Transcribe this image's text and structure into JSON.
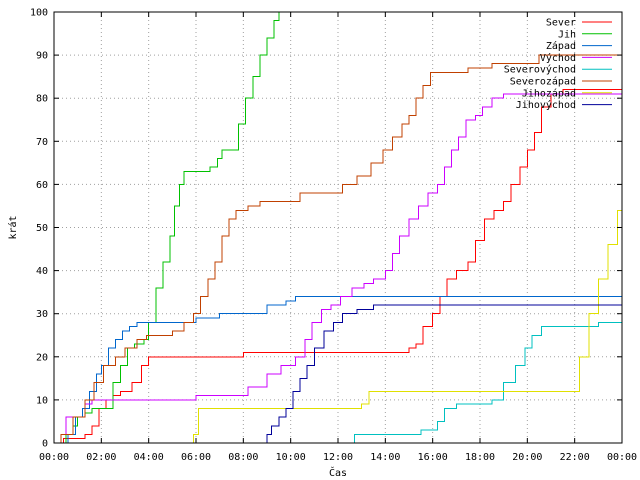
{
  "chart_data": {
    "type": "line",
    "step": true,
    "xlabel": "Čas",
    "ylabel": "krát",
    "xlim": [
      0,
      24
    ],
    "ylim": [
      0,
      100
    ],
    "x_ticks": [
      {
        "value": 0,
        "label": "00:00"
      },
      {
        "value": 2,
        "label": "02:00"
      },
      {
        "value": 4,
        "label": "04:00"
      },
      {
        "value": 6,
        "label": "06:00"
      },
      {
        "value": 8,
        "label": "08:00"
      },
      {
        "value": 10,
        "label": "10:00"
      },
      {
        "value": 12,
        "label": "12:00"
      },
      {
        "value": 14,
        "label": "14:00"
      },
      {
        "value": 16,
        "label": "16:00"
      },
      {
        "value": 18,
        "label": "18:00"
      },
      {
        "value": 20,
        "label": "20:00"
      },
      {
        "value": 22,
        "label": "22:00"
      },
      {
        "value": 24,
        "label": "00:00"
      }
    ],
    "y_ticks": [
      {
        "value": 0,
        "label": "0"
      },
      {
        "value": 10,
        "label": "10"
      },
      {
        "value": 20,
        "label": "20"
      },
      {
        "value": 30,
        "label": "30"
      },
      {
        "value": 40,
        "label": "40"
      },
      {
        "value": 50,
        "label": "50"
      },
      {
        "value": 60,
        "label": "60"
      },
      {
        "value": 70,
        "label": "70"
      },
      {
        "value": 80,
        "label": "80"
      },
      {
        "value": 90,
        "label": "90"
      },
      {
        "value": 100,
        "label": "100"
      }
    ],
    "grid": true,
    "legend_position": "top-right",
    "series": [
      {
        "name": "Sever",
        "color": "#ff0000",
        "points": [
          [
            0,
            0
          ],
          [
            0.4,
            1
          ],
          [
            1.3,
            2
          ],
          [
            1.6,
            4
          ],
          [
            1.9,
            8
          ],
          [
            2.2,
            10
          ],
          [
            2.5,
            11
          ],
          [
            2.8,
            12
          ],
          [
            3.3,
            14
          ],
          [
            3.7,
            18
          ],
          [
            4.0,
            20
          ],
          [
            5.0,
            20
          ],
          [
            7.0,
            20
          ],
          [
            8.0,
            21
          ],
          [
            9.0,
            21
          ],
          [
            11.0,
            21
          ],
          [
            13.0,
            21
          ],
          [
            14.5,
            21
          ],
          [
            15.0,
            22
          ],
          [
            15.3,
            23
          ],
          [
            15.6,
            27
          ],
          [
            16.0,
            30
          ],
          [
            16.3,
            34
          ],
          [
            16.6,
            38
          ],
          [
            17.0,
            40
          ],
          [
            17.5,
            42
          ],
          [
            17.8,
            47
          ],
          [
            18.2,
            52
          ],
          [
            18.6,
            54
          ],
          [
            19.0,
            56
          ],
          [
            19.3,
            60
          ],
          [
            19.7,
            64
          ],
          [
            20.0,
            68
          ],
          [
            20.3,
            72
          ],
          [
            20.6,
            78
          ],
          [
            21.0,
            81
          ],
          [
            21.5,
            82
          ],
          [
            22.5,
            82
          ],
          [
            24.0,
            82
          ]
        ]
      },
      {
        "name": "Jih",
        "color": "#00c000",
        "points": [
          [
            0,
            0
          ],
          [
            0.5,
            2
          ],
          [
            0.8,
            4
          ],
          [
            1.0,
            6
          ],
          [
            1.3,
            7
          ],
          [
            1.6,
            8
          ],
          [
            2.0,
            8
          ],
          [
            2.5,
            14
          ],
          [
            2.8,
            18
          ],
          [
            3.1,
            22
          ],
          [
            3.4,
            23
          ],
          [
            3.8,
            24
          ],
          [
            4.0,
            28
          ],
          [
            4.3,
            36
          ],
          [
            4.6,
            42
          ],
          [
            4.9,
            48
          ],
          [
            5.1,
            55
          ],
          [
            5.3,
            60
          ],
          [
            5.5,
            63
          ],
          [
            6.0,
            63
          ],
          [
            6.3,
            63
          ],
          [
            6.6,
            64
          ],
          [
            6.9,
            66
          ],
          [
            7.1,
            68
          ],
          [
            7.6,
            68
          ],
          [
            7.8,
            74
          ],
          [
            8.1,
            80
          ],
          [
            8.4,
            85
          ],
          [
            8.7,
            90
          ],
          [
            9.0,
            94
          ],
          [
            9.3,
            98
          ],
          [
            9.5,
            100
          ]
        ]
      },
      {
        "name": "Západ",
        "color": "#0066cc",
        "points": [
          [
            0,
            0
          ],
          [
            0.6,
            2
          ],
          [
            0.9,
            6
          ],
          [
            1.2,
            8
          ],
          [
            1.5,
            12
          ],
          [
            1.8,
            16
          ],
          [
            2.0,
            18
          ],
          [
            2.3,
            22
          ],
          [
            2.6,
            24
          ],
          [
            2.9,
            26
          ],
          [
            3.2,
            27
          ],
          [
            3.5,
            28
          ],
          [
            4.0,
            28
          ],
          [
            5.0,
            28
          ],
          [
            6.0,
            29
          ],
          [
            7.0,
            30
          ],
          [
            8.0,
            30
          ],
          [
            9.0,
            32
          ],
          [
            9.8,
            33
          ],
          [
            10.2,
            34
          ],
          [
            12.0,
            34
          ],
          [
            14.0,
            34
          ],
          [
            16.0,
            34
          ],
          [
            18.0,
            34
          ],
          [
            20.0,
            34
          ],
          [
            22.0,
            34
          ],
          [
            24.0,
            34
          ]
        ]
      },
      {
        "name": "Východ",
        "color": "#cc00ff",
        "points": [
          [
            0,
            0
          ],
          [
            0.3,
            2
          ],
          [
            0.5,
            6
          ],
          [
            1.0,
            6
          ],
          [
            1.3,
            9
          ],
          [
            1.6,
            10
          ],
          [
            3.0,
            10
          ],
          [
            4.5,
            10
          ],
          [
            5.0,
            10
          ],
          [
            6.0,
            11
          ],
          [
            7.5,
            11
          ],
          [
            8.2,
            13
          ],
          [
            9.0,
            16
          ],
          [
            9.6,
            18
          ],
          [
            10.2,
            20
          ],
          [
            10.6,
            24
          ],
          [
            10.9,
            28
          ],
          [
            11.3,
            31
          ],
          [
            11.7,
            32
          ],
          [
            12.1,
            34
          ],
          [
            12.6,
            36
          ],
          [
            13.1,
            37
          ],
          [
            13.5,
            38
          ],
          [
            14.0,
            40
          ],
          [
            14.3,
            44
          ],
          [
            14.6,
            48
          ],
          [
            15.0,
            52
          ],
          [
            15.4,
            55
          ],
          [
            15.8,
            58
          ],
          [
            16.2,
            60
          ],
          [
            16.5,
            64
          ],
          [
            16.8,
            68
          ],
          [
            17.1,
            71
          ],
          [
            17.4,
            75
          ],
          [
            17.8,
            76
          ],
          [
            18.1,
            78
          ],
          [
            18.5,
            80
          ],
          [
            19.0,
            81
          ],
          [
            20.0,
            81
          ],
          [
            22.0,
            81
          ],
          [
            24.0,
            81
          ]
        ]
      },
      {
        "name": "Severovýchod",
        "color": "#00c0c0",
        "points": [
          [
            12.5,
            0
          ],
          [
            12.7,
            2
          ],
          [
            15.0,
            2
          ],
          [
            15.5,
            3
          ],
          [
            16.2,
            5
          ],
          [
            16.5,
            8
          ],
          [
            17.0,
            9
          ],
          [
            18.5,
            10
          ],
          [
            19.0,
            14
          ],
          [
            19.5,
            18
          ],
          [
            19.9,
            22
          ],
          [
            20.2,
            25
          ],
          [
            20.6,
            27
          ],
          [
            21.5,
            27
          ],
          [
            22.5,
            27
          ],
          [
            23.0,
            28
          ],
          [
            24.0,
            28
          ]
        ]
      },
      {
        "name": "Severozápad",
        "color": "#c04000",
        "points": [
          [
            0,
            0
          ],
          [
            0.3,
            2
          ],
          [
            0.8,
            6
          ],
          [
            1.3,
            10
          ],
          [
            1.7,
            14
          ],
          [
            2.1,
            18
          ],
          [
            2.6,
            20
          ],
          [
            3.0,
            22
          ],
          [
            3.5,
            24
          ],
          [
            3.9,
            25
          ],
          [
            4.5,
            25
          ],
          [
            5.0,
            26
          ],
          [
            5.5,
            28
          ],
          [
            5.9,
            30
          ],
          [
            6.2,
            34
          ],
          [
            6.5,
            38
          ],
          [
            6.8,
            42
          ],
          [
            7.1,
            48
          ],
          [
            7.4,
            52
          ],
          [
            7.7,
            54
          ],
          [
            8.2,
            55
          ],
          [
            8.7,
            56
          ],
          [
            9.5,
            56
          ],
          [
            10.4,
            58
          ],
          [
            11.5,
            58
          ],
          [
            12.2,
            60
          ],
          [
            12.8,
            62
          ],
          [
            13.4,
            65
          ],
          [
            13.9,
            68
          ],
          [
            14.3,
            71
          ],
          [
            14.7,
            74
          ],
          [
            15.0,
            76
          ],
          [
            15.3,
            80
          ],
          [
            15.6,
            83
          ],
          [
            15.9,
            86
          ],
          [
            16.5,
            86
          ],
          [
            17.5,
            87
          ],
          [
            18.5,
            88
          ],
          [
            20.0,
            88
          ],
          [
            20.5,
            90
          ],
          [
            22.0,
            90
          ],
          [
            24.0,
            90
          ]
        ]
      },
      {
        "name": "Jihozápad",
        "color": "#e0e000",
        "points": [
          [
            5.8,
            0
          ],
          [
            5.9,
            2
          ],
          [
            6.1,
            8
          ],
          [
            8.0,
            8
          ],
          [
            10.0,
            8
          ],
          [
            12.0,
            8
          ],
          [
            13.0,
            9
          ],
          [
            13.3,
            12
          ],
          [
            15.0,
            12
          ],
          [
            17.0,
            12
          ],
          [
            19.0,
            12
          ],
          [
            21.0,
            12
          ],
          [
            21.5,
            12
          ],
          [
            21.8,
            12
          ],
          [
            22.2,
            20
          ],
          [
            22.6,
            30
          ],
          [
            23.0,
            38
          ],
          [
            23.4,
            46
          ],
          [
            23.8,
            54
          ],
          [
            24.0,
            60
          ]
        ]
      },
      {
        "name": "Jihovýchod",
        "color": "#000099",
        "points": [
          [
            8.8,
            0
          ],
          [
            9.0,
            2
          ],
          [
            9.2,
            4
          ],
          [
            9.5,
            6
          ],
          [
            9.8,
            8
          ],
          [
            10.1,
            12
          ],
          [
            10.4,
            15
          ],
          [
            10.7,
            18
          ],
          [
            11.0,
            22
          ],
          [
            11.4,
            26
          ],
          [
            11.8,
            28
          ],
          [
            12.2,
            30
          ],
          [
            12.8,
            31
          ],
          [
            13.5,
            32
          ],
          [
            15.0,
            32
          ],
          [
            17.0,
            32
          ],
          [
            19.0,
            32
          ],
          [
            21.0,
            32
          ],
          [
            23.0,
            32
          ],
          [
            24.0,
            32
          ]
        ]
      }
    ]
  }
}
